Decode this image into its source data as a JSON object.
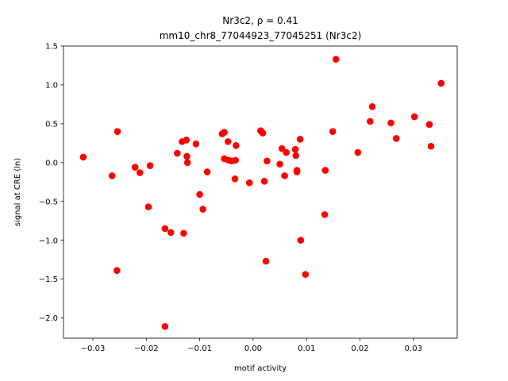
{
  "chart_data": {
    "type": "scatter",
    "title_line1": "Nr3c2, ρ = 0.41",
    "title_line2": "mm10_chr8_77044923_77045251 (Nr3c2)",
    "xlabel": "motif activity",
    "ylabel": "signal at CRE (ln)",
    "xlim": [
      -0.0355,
      0.0382
    ],
    "ylim": [
      -2.26,
      1.5
    ],
    "xticks": [
      -0.03,
      -0.02,
      -0.01,
      0.0,
      0.01,
      0.02,
      0.03
    ],
    "xtick_labels": [
      "−0.03",
      "−0.02",
      "−0.01",
      "0.00",
      "0.01",
      "0.02",
      "0.03"
    ],
    "yticks": [
      -2.0,
      -1.5,
      -1.0,
      -0.5,
      0.0,
      0.5,
      1.0,
      1.5
    ],
    "ytick_labels": [
      "−2.0",
      "−1.5",
      "−1.0",
      "−0.5",
      "0.0",
      "0.5",
      "1.0",
      "1.5"
    ],
    "grid": false,
    "marker_color": "#ff0000",
    "points": [
      {
        "x": -0.0318,
        "y": 0.07
      },
      {
        "x": -0.0264,
        "y": -0.17
      },
      {
        "x": -0.0254,
        "y": 0.4
      },
      {
        "x": -0.0255,
        "y": -1.39
      },
      {
        "x": -0.0221,
        "y": -0.06
      },
      {
        "x": -0.0212,
        "y": -0.13
      },
      {
        "x": -0.0196,
        "y": -0.57
      },
      {
        "x": -0.0193,
        "y": -0.04
      },
      {
        "x": -0.0165,
        "y": -0.85
      },
      {
        "x": -0.0165,
        "y": -2.11
      },
      {
        "x": -0.0154,
        "y": -0.9
      },
      {
        "x": -0.0142,
        "y": 0.12
      },
      {
        "x": -0.0133,
        "y": 0.27
      },
      {
        "x": -0.013,
        "y": -0.91
      },
      {
        "x": -0.0125,
        "y": 0.29
      },
      {
        "x": -0.0124,
        "y": 0.08
      },
      {
        "x": -0.0123,
        "y": 0.0
      },
      {
        "x": -0.0107,
        "y": 0.24
      },
      {
        "x": -0.01,
        "y": -0.41
      },
      {
        "x": -0.0094,
        "y": -0.6
      },
      {
        "x": -0.0086,
        "y": -0.12
      },
      {
        "x": -0.0058,
        "y": 0.37
      },
      {
        "x": -0.0054,
        "y": 0.39
      },
      {
        "x": -0.0054,
        "y": 0.05
      },
      {
        "x": -0.0047,
        "y": 0.27
      },
      {
        "x": -0.0046,
        "y": 0.03
      },
      {
        "x": -0.004,
        "y": 0.02
      },
      {
        "x": -0.0034,
        "y": -0.21
      },
      {
        "x": -0.0033,
        "y": 0.03
      },
      {
        "x": -0.0032,
        "y": 0.22
      },
      {
        "x": -0.0007,
        "y": -0.26
      },
      {
        "x": 0.0014,
        "y": 0.41
      },
      {
        "x": 0.0018,
        "y": 0.38
      },
      {
        "x": 0.0021,
        "y": -0.24
      },
      {
        "x": 0.0024,
        "y": -1.27
      },
      {
        "x": 0.0026,
        "y": 0.02
      },
      {
        "x": 0.005,
        "y": -0.02
      },
      {
        "x": 0.0054,
        "y": 0.18
      },
      {
        "x": 0.0059,
        "y": -0.17
      },
      {
        "x": 0.0062,
        "y": 0.13
      },
      {
        "x": 0.0079,
        "y": 0.17
      },
      {
        "x": 0.008,
        "y": 0.09
      },
      {
        "x": 0.0082,
        "y": -0.1
      },
      {
        "x": 0.0082,
        "y": -0.12
      },
      {
        "x": 0.0088,
        "y": 0.3
      },
      {
        "x": 0.0089,
        "y": -1.0
      },
      {
        "x": 0.0098,
        "y": -1.44
      },
      {
        "x": 0.0134,
        "y": -0.67
      },
      {
        "x": 0.0135,
        "y": -0.1
      },
      {
        "x": 0.0149,
        "y": 0.4
      },
      {
        "x": 0.0155,
        "y": 1.33
      },
      {
        "x": 0.0196,
        "y": 0.13
      },
      {
        "x": 0.0219,
        "y": 0.53
      },
      {
        "x": 0.0223,
        "y": 0.72
      },
      {
        "x": 0.0258,
        "y": 0.51
      },
      {
        "x": 0.0268,
        "y": 0.31
      },
      {
        "x": 0.0302,
        "y": 0.59
      },
      {
        "x": 0.033,
        "y": 0.49
      },
      {
        "x": 0.0333,
        "y": 0.21
      },
      {
        "x": 0.0352,
        "y": 1.02
      }
    ]
  }
}
